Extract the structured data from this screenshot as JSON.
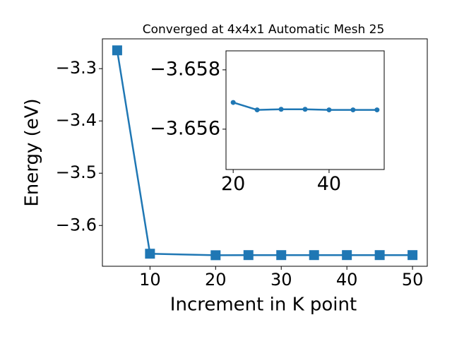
{
  "chart_data": [
    {
      "type": "line",
      "title": "Converged at 4x4x1 Automatic Mesh 25",
      "xlabel": "Increment in K point",
      "ylabel": "Energy (eV)",
      "x": [
        5,
        10,
        20,
        25,
        30,
        35,
        40,
        45,
        50
      ],
      "series": [
        {
          "color": "#1f77b4",
          "marker": "square",
          "values": [
            -3.265,
            -3.654,
            -3.6569,
            -3.65665,
            -3.65667,
            -3.65667,
            -3.65665,
            -3.65665,
            -3.65665
          ]
        }
      ],
      "xlim": [
        2.75,
        52.25
      ],
      "xticks": [
        10,
        20,
        30,
        40,
        50
      ],
      "ylim": [
        -3.678,
        -3.243
      ],
      "yticks": [
        {
          "value": -3.3,
          "label": "−3.3"
        },
        {
          "value": -3.4,
          "label": "−3.4"
        },
        {
          "value": -3.5,
          "label": "−3.5"
        },
        {
          "value": -3.6,
          "label": "−3.6"
        }
      ]
    },
    {
      "type": "line",
      "x": [
        20,
        25,
        30,
        35,
        40,
        45,
        50
      ],
      "series": [
        {
          "color": "#1f77b4",
          "marker": "circle",
          "values": [
            -3.6569,
            -3.65665,
            -3.65667,
            -3.65667,
            -3.65665,
            -3.65665,
            -3.65665
          ]
        }
      ],
      "xlim": [
        18.5,
        51.5
      ],
      "xticks": [
        20,
        40
      ],
      "ylim": [
        -3.65464,
        -3.65864
      ],
      "yticks": [
        {
          "value": -3.658,
          "label": "−3.658"
        },
        {
          "value": -3.656,
          "label": "−3.656"
        }
      ]
    }
  ]
}
